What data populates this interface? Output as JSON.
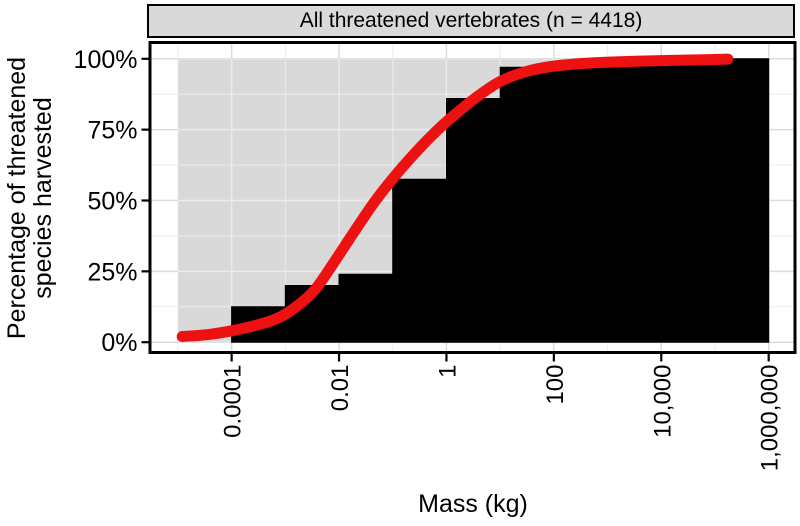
{
  "chart_data": {
    "type": "bar",
    "title": "All threatened vertebrates (n = 4418)",
    "xlabel": "Mass (kg)",
    "ylabel": "Percentage of threatened species harvested",
    "ylabel_lines": [
      "Percentage of threatened",
      "species harvested"
    ],
    "x_scale": "log10",
    "x_ticks": [
      {
        "log10": -4,
        "label": "0.0001"
      },
      {
        "log10": -2,
        "label": "0.01"
      },
      {
        "log10": 0,
        "label": "1"
      },
      {
        "log10": 2,
        "label": "100"
      },
      {
        "log10": 4,
        "label": "10,000"
      },
      {
        "log10": 6,
        "label": "1,000,000"
      }
    ],
    "x_minor_log10": [
      -5,
      -3,
      -1,
      1,
      3,
      5
    ],
    "y_ticks": [
      {
        "percent": 0,
        "label": "0%"
      },
      {
        "percent": 25,
        "label": "25%"
      },
      {
        "percent": 50,
        "label": "50%"
      },
      {
        "percent": 75,
        "label": "75%"
      },
      {
        "percent": 100,
        "label": "100%"
      }
    ],
    "y_minor_percent": [
      12.5,
      37.5,
      62.5,
      87.5
    ],
    "ylim": [
      0,
      100
    ],
    "xlim_log10": [
      -5,
      6
    ],
    "grid": "on",
    "legend": "none",
    "background_range_bar": {
      "from_log10": -5,
      "to_log10": 6,
      "percent": 100,
      "color": "#D9D9D9"
    },
    "cumulative_bars": [
      {
        "from_log10": -4,
        "to_log10": -3,
        "percent": 12.5
      },
      {
        "from_log10": -3,
        "to_log10": -2,
        "percent": 20
      },
      {
        "from_log10": -2,
        "to_log10": -1,
        "percent": 24
      },
      {
        "from_log10": -1,
        "to_log10": 0,
        "percent": 57.5
      },
      {
        "from_log10": 0,
        "to_log10": 1,
        "percent": 86
      },
      {
        "from_log10": 1,
        "to_log10": 2,
        "percent": 97
      },
      {
        "from_log10": 2,
        "to_log10": 3,
        "percent": 98
      },
      {
        "from_log10": 3,
        "to_log10": 4,
        "percent": 98.5
      },
      {
        "from_log10": 4,
        "to_log10": 5,
        "percent": 100
      },
      {
        "from_log10": 5,
        "to_log10": 6,
        "percent": 100
      }
    ],
    "fitted_curve_points": [
      [
        -4.92,
        2.0
      ],
      [
        -4.4,
        2.8
      ],
      [
        -3.8,
        4.8
      ],
      [
        -3.2,
        8.0
      ],
      [
        -2.8,
        12.5
      ],
      [
        -2.45,
        18.5
      ],
      [
        -2.1,
        28.0
      ],
      [
        -1.7,
        39.5
      ],
      [
        -1.32,
        50.0
      ],
      [
        -0.9,
        60.0
      ],
      [
        -0.5,
        68.5
      ],
      [
        -0.16,
        75.0
      ],
      [
        0.2,
        81.0
      ],
      [
        0.6,
        87.0
      ],
      [
        1.0,
        92.0
      ],
      [
        1.45,
        95.3
      ],
      [
        1.95,
        97.3
      ],
      [
        2.6,
        98.4
      ],
      [
        3.3,
        99.0
      ],
      [
        4.1,
        99.4
      ],
      [
        4.8,
        99.7
      ],
      [
        5.24,
        99.9
      ]
    ],
    "colors": {
      "bars": "#000000",
      "curve": "#EE1111",
      "panel_background": "#FFFFFF",
      "background_bar": "#D9D9D9",
      "strip_background": "#D9D9D9",
      "grid_major": "#DCDCDC",
      "grid_minor": "#ECECEC",
      "axis_text": "#000000"
    }
  }
}
